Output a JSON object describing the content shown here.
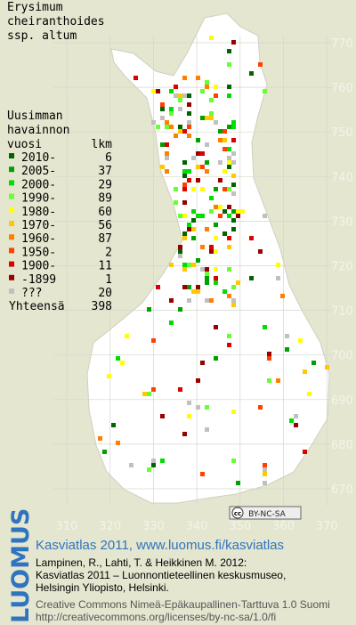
{
  "species": [
    "Erysimum",
    "cheiranthoides",
    "ssp. altum"
  ],
  "legend": {
    "title": [
      "Uusimman",
      "havainnon"
    ],
    "year_header": "vuosi",
    "count_header": "lkm",
    "rows": [
      {
        "label": "2010-",
        "count": 6,
        "color": "#006400"
      },
      {
        "label": "2005-",
        "count": 37,
        "color": "#00a000"
      },
      {
        "label": "2000-",
        "count": 29,
        "color": "#00dd00"
      },
      {
        "label": "1990-",
        "count": 89,
        "color": "#66ff33"
      },
      {
        "label": "1980-",
        "count": 60,
        "color": "#ffff00"
      },
      {
        "label": "1970-",
        "count": 56,
        "color": "#ffc800"
      },
      {
        "label": "1960-",
        "count": 87,
        "color": "#ff8000"
      },
      {
        "label": "1950-",
        "count": 2,
        "color": "#ff4000"
      },
      {
        "label": "1900-",
        "count": 11,
        "color": "#dd0000"
      },
      {
        "label": "-1899",
        "count": 1,
        "color": "#990000"
      },
      {
        "label": "???",
        "count": 20,
        "color": "#c0c0c0"
      }
    ],
    "total": {
      "label": "Yhteensä",
      "count": 398
    }
  },
  "grid": {
    "northing": [
      770,
      760,
      750,
      740,
      730,
      720,
      710,
      700,
      690,
      680,
      670
    ],
    "easting": [
      310,
      320,
      330,
      340,
      350,
      360,
      370
    ]
  },
  "license_badge": {
    "icon": "cc",
    "text": "BY-NC-SA"
  },
  "footer": {
    "logo": "LUOMUS",
    "link": "Kasviatlas 2011, www.luomus.fi/kasviatlas",
    "citation": [
      "Lampinen, R., Lahti, T. & Heikkinen M. 2012:",
      "Kasviatlas 2011 – Luonnontieteellinen keskusmuseo,",
      "Helsingin Yliopisto, Helsinki."
    ],
    "license": [
      "Creative Commons Nimeä-Epäkaupallinen-Tarttuva 1.0 Suomi",
      "http://creativecommons.org/licenses/by-nc-sa/1.0/fi"
    ]
  }
}
